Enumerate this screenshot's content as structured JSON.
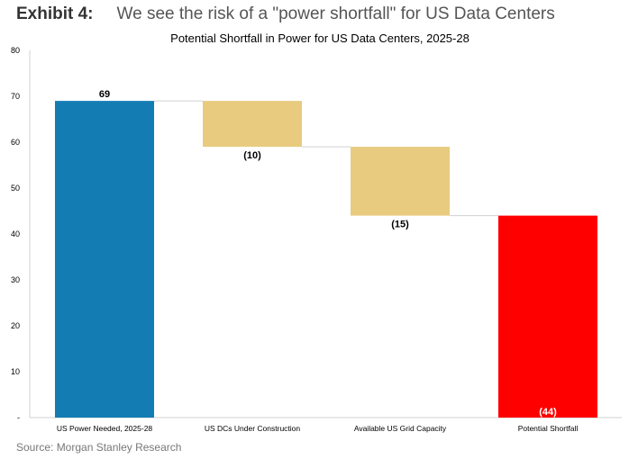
{
  "exhibit": {
    "label": "Exhibit 4:",
    "title": "We see the risk of a \"power shortfall\" for US Data Centers",
    "source": "Source: Morgan Stanley Research"
  },
  "chart_data": {
    "type": "bar",
    "subtype": "waterfall",
    "title": "Potential Shortfall in Power for US Data Centers, 2025-28",
    "xlabel": "",
    "ylabel": "",
    "ylim": [
      0,
      80
    ],
    "yticks": [
      0,
      10,
      20,
      30,
      40,
      50,
      60,
      70,
      80
    ],
    "ytick_labels": [
      "-",
      "10",
      "20",
      "30",
      "40",
      "50",
      "60",
      "70",
      "80"
    ],
    "grid": false,
    "categories": [
      "US Power Needed, 2025-28",
      "US DCs Under Construction",
      "Available US Grid Capacity",
      "Potential Shortfall"
    ],
    "values": [
      69,
      -10,
      -15,
      44
    ],
    "bar_kind": [
      "total",
      "delta",
      "delta",
      "total"
    ],
    "data_labels": [
      "69",
      "(10)",
      "(15)",
      "(44)"
    ],
    "colors": [
      "#137db3",
      "#e8cb7f",
      "#e8cb7f",
      "#ff0000"
    ]
  }
}
